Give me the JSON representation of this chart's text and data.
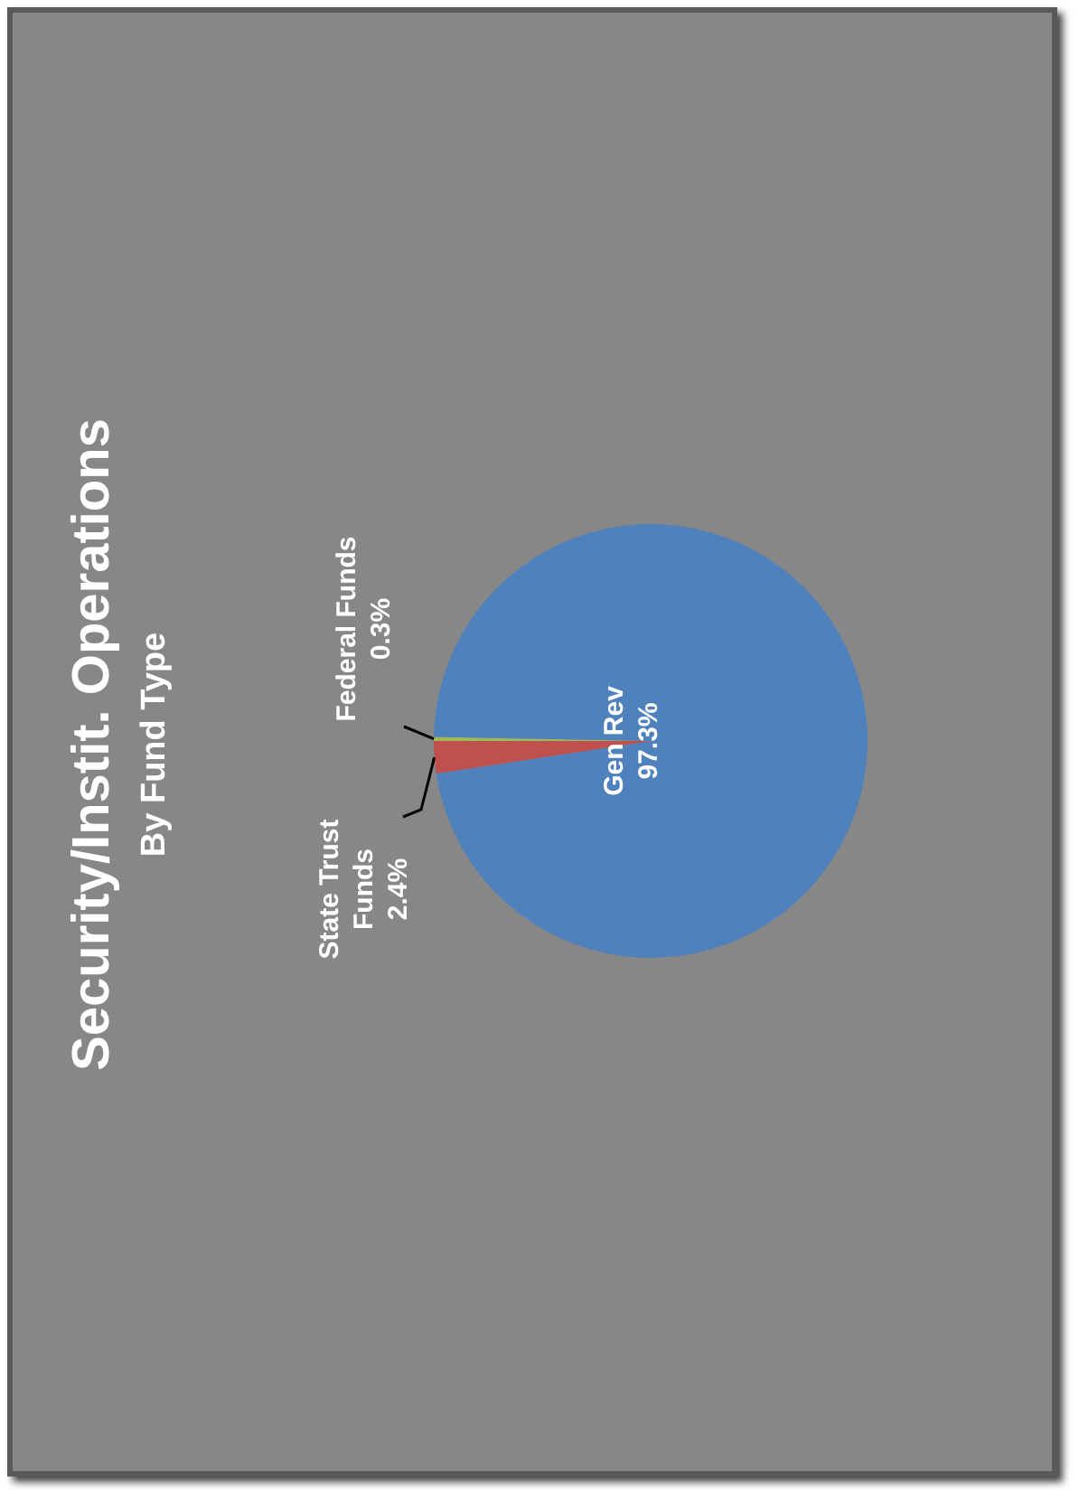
{
  "chart_data": {
    "type": "pie",
    "title": "Security/Instit. Operations",
    "subtitle": "By Fund Type",
    "categories": [
      "Federal Funds",
      "Gen Rev",
      "State Trust Funds"
    ],
    "values": [
      0.3,
      97.3,
      2.4
    ],
    "colors": [
      "#9bbb59",
      "#4f81bd",
      "#c0504d"
    ],
    "value_labels": [
      "0.3%",
      "97.3%",
      "2.4%"
    ],
    "legend": false
  }
}
